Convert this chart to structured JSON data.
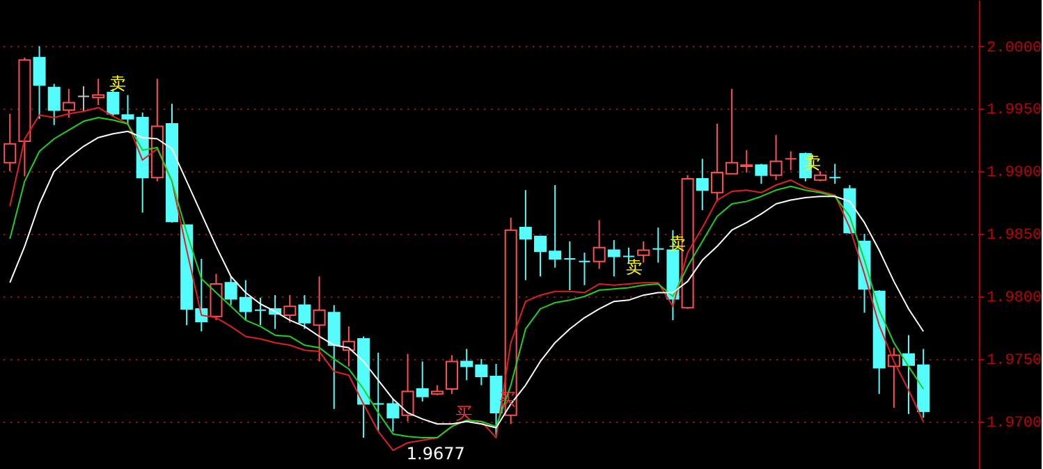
{
  "chart_data": {
    "type": "candlestick",
    "categories": [
      null,
      null,
      null,
      null,
      null,
      null,
      null,
      null,
      null,
      null,
      null,
      null,
      null,
      null,
      null,
      null,
      null,
      null,
      null,
      null,
      null,
      null,
      null,
      null,
      null,
      null,
      null,
      null,
      null,
      null,
      null,
      null,
      null,
      null,
      null,
      null,
      null,
      null,
      null,
      null,
      null,
      null,
      null,
      null,
      null,
      null,
      null,
      null,
      null,
      null,
      null,
      null,
      null,
      null,
      null,
      null,
      null,
      null,
      null,
      null,
      null,
      null,
      null
    ],
    "ohlc": [
      [
        1.9907,
        1.9946,
        1.99,
        1.9922
      ],
      [
        1.9924,
        1.9991,
        1.9896,
        1.9989
      ],
      [
        1.9991,
        2.0,
        1.9942,
        1.9969
      ],
      [
        1.9967,
        1.997,
        1.9937,
        1.9949
      ],
      [
        1.9949,
        1.9966,
        1.9943,
        1.9955
      ],
      [
        1.996,
        1.9968,
        1.9948,
        1.996
      ],
      [
        1.9959,
        1.9974,
        1.9953,
        1.9961
      ],
      [
        1.9963,
        1.9966,
        1.9944,
        1.9946
      ],
      [
        1.9945,
        1.9961,
        1.9937,
        1.9942
      ],
      [
        1.9943,
        1.9947,
        1.9867,
        1.9895
      ],
      [
        1.9895,
        1.9974,
        1.9892,
        1.9936
      ],
      [
        1.9938,
        1.9954,
        1.9859,
        1.986
      ],
      [
        1.9857,
        1.9857,
        1.9777,
        1.979
      ],
      [
        1.979,
        1.983,
        1.9772,
        1.978
      ],
      [
        1.9784,
        1.9818,
        1.9781,
        1.981
      ],
      [
        1.9811,
        1.9816,
        1.9793,
        1.9798
      ],
      [
        1.9799,
        1.9813,
        1.9781,
        1.9788
      ],
      [
        1.9789,
        1.9799,
        1.9777,
        1.9789
      ],
      [
        1.979,
        1.9801,
        1.9774,
        1.9786
      ],
      [
        1.9785,
        1.9801,
        1.9779,
        1.9792
      ],
      [
        1.9793,
        1.9801,
        1.9774,
        1.9779
      ],
      [
        1.9777,
        1.9816,
        1.9748,
        1.9789
      ],
      [
        1.9787,
        1.9793,
        1.971,
        1.9761
      ],
      [
        1.9757,
        1.9776,
        1.9744,
        1.9764
      ],
      [
        1.9766,
        1.9768,
        1.9687,
        1.9714
      ],
      [
        1.9714,
        1.9755,
        1.9692,
        1.9714
      ],
      [
        1.9714,
        1.9718,
        1.9692,
        1.9703
      ],
      [
        1.9705,
        1.9754,
        1.97,
        1.9724
      ],
      [
        1.9726,
        1.9748,
        1.9716,
        1.972
      ],
      [
        1.9722,
        1.9729,
        1.9721,
        1.9724
      ],
      [
        1.9726,
        1.9753,
        1.9722,
        1.9748
      ],
      [
        1.9748,
        1.9758,
        1.9733,
        1.9744
      ],
      [
        1.9745,
        1.975,
        1.9729,
        1.9736
      ],
      [
        1.9736,
        1.9746,
        1.9689,
        1.9707
      ],
      [
        1.9705,
        1.9863,
        1.9698,
        1.9853
      ],
      [
        1.9855,
        1.9885,
        1.9813,
        1.9846
      ],
      [
        1.9848,
        1.9848,
        1.9816,
        1.9836
      ],
      [
        1.9836,
        1.9889,
        1.9823,
        1.983
      ],
      [
        1.983,
        1.9844,
        1.9805,
        1.983
      ],
      [
        1.9828,
        1.9835,
        1.9809,
        1.9828
      ],
      [
        1.9828,
        1.9861,
        1.9822,
        1.9839
      ],
      [
        1.9837,
        1.9845,
        1.9816,
        1.9832
      ],
      [
        1.9832,
        1.9839,
        1.9826,
        1.9832
      ],
      [
        1.9833,
        1.9844,
        1.9827,
        1.9837
      ],
      [
        1.9838,
        1.9855,
        1.9827,
        1.9838
      ],
      [
        1.9837,
        1.9853,
        1.9781,
        1.9798
      ],
      [
        1.9791,
        1.9897,
        1.979,
        1.9894
      ],
      [
        1.9894,
        1.991,
        1.9869,
        1.9885
      ],
      [
        1.9883,
        1.9938,
        1.9876,
        1.9899
      ],
      [
        1.9898,
        1.9966,
        1.9898,
        1.9907
      ],
      [
        1.9904,
        1.9917,
        1.9899,
        1.9905
      ],
      [
        1.9905,
        1.9906,
        1.989,
        1.9897
      ],
      [
        1.9897,
        1.9929,
        1.9893,
        1.9908
      ],
      [
        1.991,
        1.9916,
        1.9901,
        1.991
      ],
      [
        1.9914,
        1.9915,
        1.9892,
        1.9895
      ],
      [
        1.9893,
        1.99,
        1.9892,
        1.9897
      ],
      [
        1.9895,
        1.9906,
        1.989,
        1.9895
      ],
      [
        1.9886,
        1.9889,
        1.985,
        1.9851
      ],
      [
        1.9844,
        1.985,
        1.9787,
        1.9806
      ],
      [
        1.9804,
        1.9805,
        1.9722,
        1.9743
      ],
      [
        1.9744,
        1.9759,
        1.9711,
        1.9753
      ],
      [
        1.9754,
        1.9769,
        1.9706,
        1.9745
      ],
      [
        1.9745,
        1.9758,
        1.9703,
        1.9708
      ]
    ],
    "colors": [
      "#ff5050",
      "#ff5050",
      "#54fcfc",
      "#54fcfc",
      "#ff5050",
      "#c0c0c0",
      "#ff5050",
      "#54fcfc",
      "#54fcfc",
      "#54fcfc",
      "#ff5050",
      "#54fcfc",
      "#54fcfc",
      "#54fcfc",
      "#ff5050",
      "#54fcfc",
      "#54fcfc",
      "#54fcfc",
      "#54fcfc",
      "#ff5050",
      "#54fcfc",
      "#ff5050",
      "#54fcfc",
      "#ff5050",
      "#54fcfc",
      "#54fcfc",
      "#54fcfc",
      "#ff5050",
      "#54fcfc",
      "#ff5050",
      "#ff5050",
      "#54fcfc",
      "#54fcfc",
      "#54fcfc",
      "#ff5050",
      "#54fcfc",
      "#54fcfc",
      "#54fcfc",
      "#54fcfc",
      "#54fcfc",
      "#ff5050",
      "#54fcfc",
      "#54fcfc",
      "#ff5050",
      "#54fcfc",
      "#54fcfc",
      "#ff5050",
      "#54fcfc",
      "#ff5050",
      "#ff5050",
      "#ff5050",
      "#54fcfc",
      "#ff5050",
      "#ff5050",
      "#54fcfc",
      "#ff5050",
      "#54fcfc",
      "#54fcfc",
      "#54fcfc",
      "#54fcfc",
      "#ff5050",
      "#54fcfc",
      "#54fcfc"
    ],
    "series": [
      {
        "type": "line",
        "color": "#e02020",
        "values": [
          1.9872,
          1.9926,
          1.9945,
          1.9943,
          1.9946,
          1.9948,
          1.9951,
          1.9944,
          1.9938,
          1.9909,
          1.9918,
          1.9892,
          1.9837,
          1.9785,
          1.9783,
          1.9776,
          1.9768,
          1.9766,
          1.9763,
          1.9761,
          1.9757,
          1.9756,
          1.974,
          1.9737,
          1.9714,
          1.9692,
          1.9677,
          1.9683,
          1.9685,
          1.9687,
          1.9696,
          1.9701,
          1.97,
          1.9687,
          1.9763,
          1.9796,
          1.9801,
          1.9804,
          1.9804,
          1.9803,
          1.981,
          1.9809,
          1.981,
          1.9811,
          1.9811,
          1.9792,
          1.9835,
          1.9855,
          1.9877,
          1.9884,
          1.9885,
          1.9883,
          1.9889,
          1.9893,
          1.9887,
          1.9884,
          1.9881,
          1.9855,
          1.9818,
          1.9777,
          1.9748,
          1.9725,
          1.97
        ]
      },
      {
        "type": "line",
        "color": "#20d020",
        "values": [
          1.9846,
          1.9892,
          1.9916,
          1.9926,
          1.9933,
          1.994,
          1.9943,
          1.9941,
          1.9938,
          1.9917,
          1.9919,
          1.9892,
          1.9851,
          1.9814,
          1.9803,
          1.9792,
          1.9781,
          1.9776,
          1.9769,
          1.9768,
          1.9761,
          1.9759,
          1.975,
          1.9742,
          1.9726,
          1.9707,
          1.969,
          1.9688,
          1.9687,
          1.9687,
          1.9696,
          1.9701,
          1.97,
          1.9696,
          1.9729,
          1.9774,
          1.979,
          1.9795,
          1.9797,
          1.98,
          1.9805,
          1.9806,
          1.9807,
          1.9809,
          1.981,
          1.98,
          1.9824,
          1.9844,
          1.9864,
          1.9874,
          1.9876,
          1.988,
          1.9885,
          1.9888,
          1.9885,
          1.9883,
          1.988,
          1.9864,
          1.9829,
          1.9789,
          1.9763,
          1.9744,
          1.9726
        ]
      },
      {
        "type": "line",
        "color": "#ffffff",
        "values": [
          1.9811,
          1.984,
          1.9874,
          1.99,
          1.9911,
          1.992,
          1.9927,
          1.993,
          1.9932,
          1.9927,
          1.9926,
          1.9918,
          1.9892,
          1.9866,
          1.984,
          1.9816,
          1.9803,
          1.9794,
          1.9788,
          1.9781,
          1.9776,
          1.9768,
          1.9761,
          1.9759,
          1.9748,
          1.9733,
          1.9718,
          1.9707,
          1.9702,
          1.9698,
          1.9698,
          1.97,
          1.9698,
          1.9695,
          1.9714,
          1.9729,
          1.9748,
          1.9763,
          1.9774,
          1.9783,
          1.979,
          1.9796,
          1.9797,
          1.9801,
          1.9803,
          1.9803,
          1.9812,
          1.9829,
          1.984,
          1.9853,
          1.9859,
          1.9866,
          1.9874,
          1.9877,
          1.9879,
          1.988,
          1.988,
          1.9876,
          1.9859,
          1.9837,
          1.9812,
          1.979,
          1.9772
        ]
      }
    ],
    "ylim": [
      1.9662,
      2.0037
    ],
    "yticks": [
      {
        "value": 1.97,
        "label": "1.9700"
      },
      {
        "value": 1.975,
        "label": "1.9750"
      },
      {
        "value": 1.98,
        "label": "1.9800"
      },
      {
        "value": 1.985,
        "label": "1.9850"
      },
      {
        "value": 1.99,
        "label": "1.9900"
      },
      {
        "value": 1.995,
        "label": "1.9950"
      },
      {
        "value": 2.0,
        "label": "2.0000"
      }
    ],
    "grid": "y",
    "tick_labels": "y",
    "annotations": [
      "卖",
      "买",
      "买",
      "卖",
      "卖",
      "卖",
      "1.9677"
    ]
  }
}
